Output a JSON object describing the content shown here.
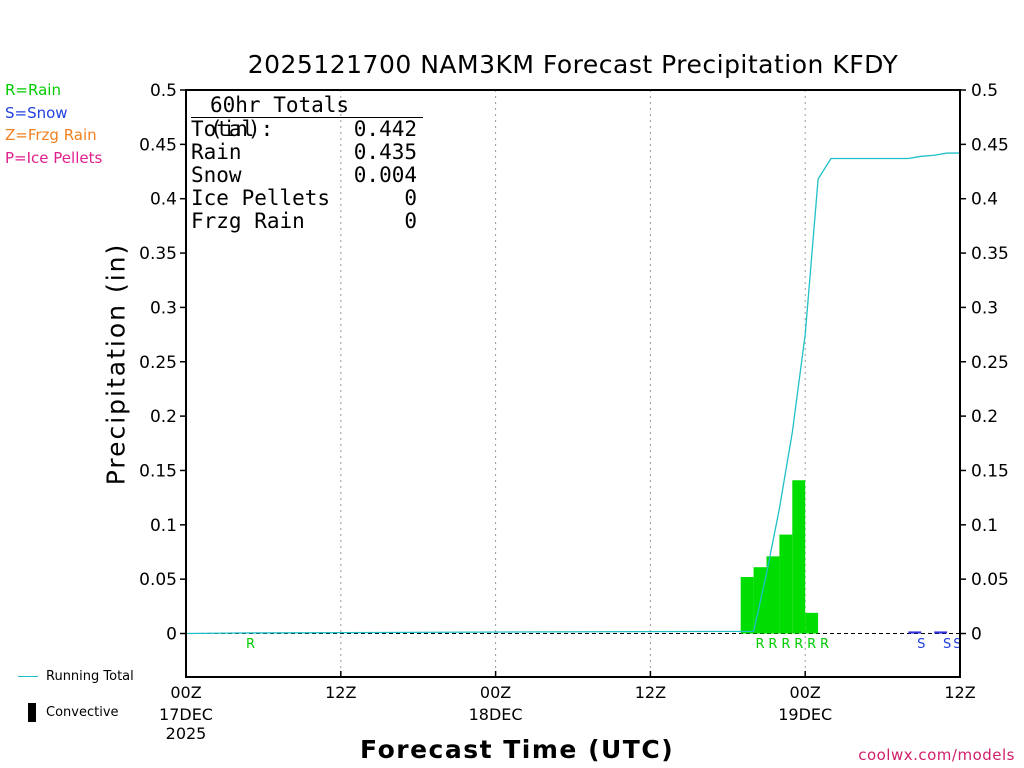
{
  "chart_data": {
    "type": "bar+line",
    "title": "2025121700 NAM3KM Forecast Precipitation KFDY",
    "xlabel": "Forecast Time (UTC)",
    "ylabel": "Precipitation (in)",
    "ylim": [
      -0.04,
      0.5
    ],
    "y_ticks": [
      "0.5",
      "0.45",
      "0.4",
      "0.35",
      "0.3",
      "0.25",
      "0.2",
      "0.15",
      "0.1",
      "0.05",
      "0"
    ],
    "xlim_hours": [
      0,
      60
    ],
    "x_ticks": [
      {
        "hour": 0,
        "label": "00Z",
        "date": "17DEC",
        "year": "2025"
      },
      {
        "hour": 12,
        "label": "12Z",
        "date": "",
        "year": ""
      },
      {
        "hour": 24,
        "label": "00Z",
        "date": "18DEC",
        "year": ""
      },
      {
        "hour": 36,
        "label": "12Z",
        "date": "",
        "year": ""
      },
      {
        "hour": 48,
        "label": "00Z",
        "date": "19DEC",
        "year": ""
      },
      {
        "hour": 60,
        "label": "12Z",
        "date": "",
        "year": ""
      }
    ],
    "grid": "vertical dotted",
    "bars": {
      "name": "Hourly precipitation",
      "hours": [
        44,
        45,
        46,
        47,
        48,
        49
      ],
      "values": [
        0.052,
        0.061,
        0.071,
        0.091,
        0.141,
        0.019
      ],
      "color": "#00dd00"
    },
    "small_bars": {
      "hours": [
        57,
        59
      ],
      "values": [
        0.001,
        0.001
      ],
      "color": "#3030dd"
    },
    "running_total": {
      "name": "Running Total",
      "color": "#20c0c8",
      "hours": [
        0,
        4,
        28,
        44,
        45,
        46,
        47,
        48,
        49,
        50,
        55,
        56,
        57,
        58,
        59,
        60
      ],
      "values": [
        0.0,
        0.0005,
        0.0015,
        0.002,
        0.055,
        0.115,
        0.185,
        0.275,
        0.418,
        0.437,
        0.437,
        0.437,
        0.439,
        0.44,
        0.442,
        0.442
      ]
    },
    "ptype_markers": [
      {
        "hour": 5,
        "type": "R"
      },
      {
        "hour": 44.5,
        "type": "R"
      },
      {
        "hour": 45.5,
        "type": "R"
      },
      {
        "hour": 46.5,
        "type": "R"
      },
      {
        "hour": 47.5,
        "type": "R"
      },
      {
        "hour": 48.5,
        "type": "R"
      },
      {
        "hour": 49.5,
        "type": "R"
      },
      {
        "hour": 57,
        "type": "S"
      },
      {
        "hour": 59,
        "type": "S"
      },
      {
        "hour": 59.8,
        "type": "S"
      }
    ],
    "ptype_colors": {
      "R": "#00cc00",
      "S": "#2040e0",
      "Z": "#f08020",
      "P": "#e0208c"
    }
  },
  "ptype_legend": [
    {
      "text": "R=Rain",
      "color": "#00cc00"
    },
    {
      "text": "S=Snow",
      "color": "#2040e0"
    },
    {
      "text": "Z=Frzg Rain",
      "color": "#f08020"
    },
    {
      "text": "P=Ice Pellets",
      "color": "#e0208c"
    }
  ],
  "totals": {
    "heading": "60hr Totals (in):",
    "rows": [
      {
        "label": "Total",
        "value": "0.442"
      },
      {
        "label": "Rain",
        "value": "0.435"
      },
      {
        "label": "Snow",
        "value": "0.004"
      },
      {
        "label": "Ice Pellets",
        "value": "0"
      },
      {
        "label": "Frzg Rain",
        "value": "0"
      }
    ]
  },
  "key": {
    "running_total": "Running Total",
    "convective": "Convective"
  },
  "credit": "coolwx.com/models"
}
